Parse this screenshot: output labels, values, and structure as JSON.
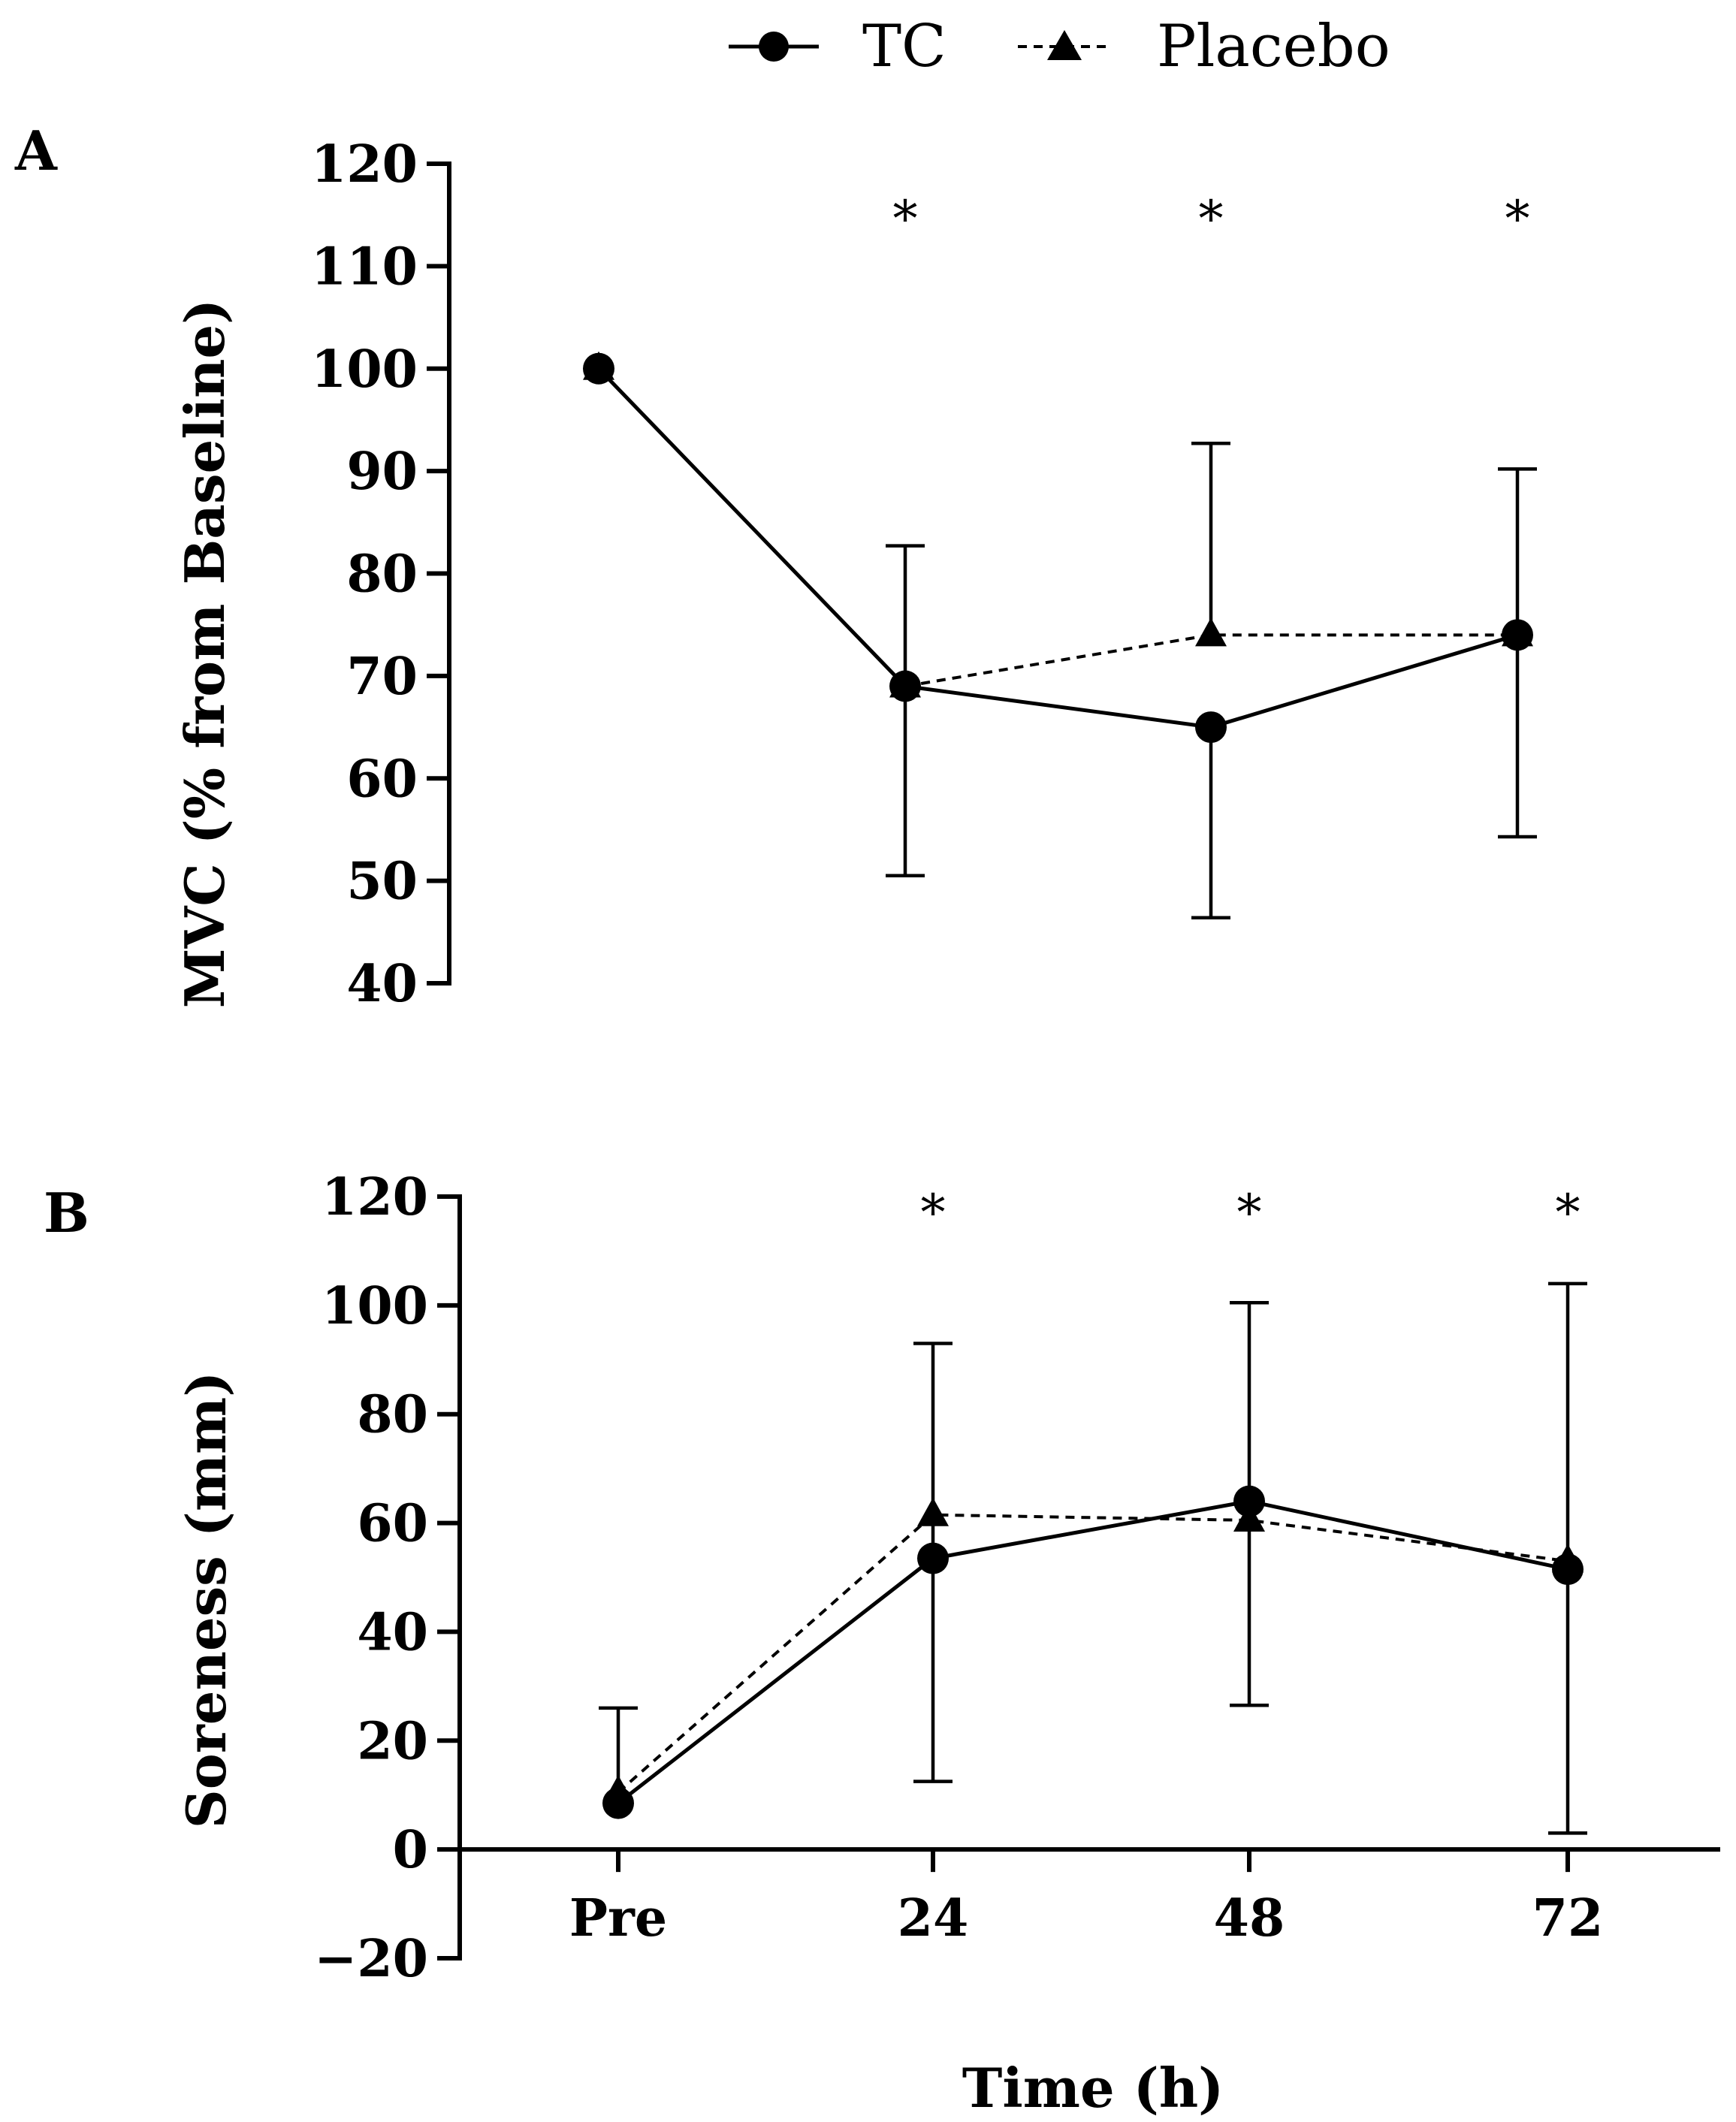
{
  "legend": {
    "items": [
      {
        "name": "TC",
        "marker": "circle",
        "line": "solid"
      },
      {
        "name": "Placebo",
        "marker": "triangle",
        "line": "dashed"
      }
    ]
  },
  "chart_data": [
    {
      "panel": "A",
      "type": "line",
      "ylabel": "MVC (% from Baseline)",
      "xlabel": "",
      "ylim": [
        40,
        120
      ],
      "yticks": [
        40,
        50,
        60,
        70,
        80,
        90,
        100,
        110,
        120
      ],
      "x": [
        "Pre",
        "24",
        "48",
        "72"
      ],
      "series": [
        {
          "name": "TC",
          "values": [
            100,
            69,
            65,
            74
          ],
          "error_upper": [
            null,
            82.7,
            null,
            90.2
          ],
          "error_lower": [
            null,
            null,
            46.4,
            null
          ]
        },
        {
          "name": "Placebo",
          "values": [
            100,
            69,
            74,
            74
          ],
          "error_upper": [
            null,
            null,
            92.7,
            null
          ],
          "error_lower": [
            null,
            50.5,
            null,
            54.3
          ]
        }
      ],
      "annotations": [
        "*",
        "*",
        "*"
      ]
    },
    {
      "panel": "B",
      "type": "line",
      "ylabel": "Soreness (mm)",
      "xlabel": "Time (h)",
      "ylim": [
        -20,
        120
      ],
      "yticks": [
        -20,
        0,
        20,
        40,
        60,
        80,
        100,
        120
      ],
      "ytick_labels": [
        "−20",
        "0",
        "20",
        "40",
        "60",
        "80",
        "100",
        "120"
      ],
      "x": [
        "Pre",
        "24",
        "48",
        "72"
      ],
      "series": [
        {
          "name": "TC",
          "values": [
            8.5,
            53.5,
            64,
            51.5
          ],
          "error_upper": [
            26,
            93,
            100.5,
            104
          ],
          "error_lower": [
            null,
            12.5,
            26.5,
            3
          ]
        },
        {
          "name": "Placebo",
          "values": [
            10.5,
            61.5,
            60.5,
            53
          ],
          "error_upper": [
            null,
            null,
            null,
            null
          ],
          "error_lower": [
            null,
            null,
            null,
            null
          ]
        }
      ],
      "annotations": [
        "*",
        "*",
        "*"
      ]
    }
  ]
}
